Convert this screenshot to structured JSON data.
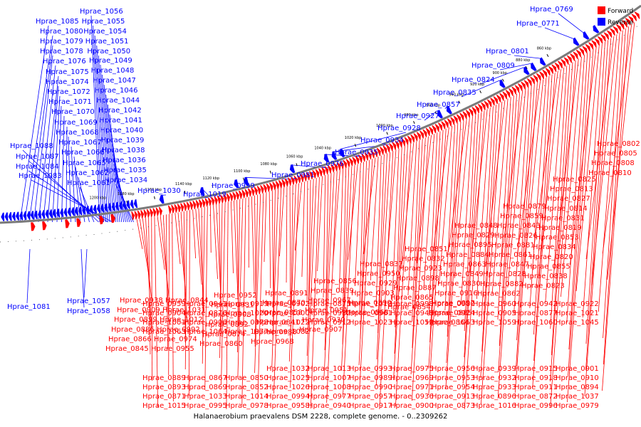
{
  "title": "Halanaerobium praevalens DSM 2228, complete genome. - 0..2309262",
  "legend": {
    "forward": "Forward",
    "reverse": "Reverse",
    "forward_color": "#ff0000",
    "reverse_color": "#0000ff"
  },
  "colors": {
    "forward": "#ff0000",
    "reverse": "#0000ff",
    "backbone": "#808080",
    "tick": "#000000"
  },
  "scale_ticks": [
    "860 kbp",
    "880 kbp",
    "900 kbp",
    "920 kbp",
    "940 kbp",
    "960 kbp",
    "980 kbp",
    "1000 kbp",
    "1020 kbp",
    "1040 kbp",
    "1060 kbp",
    "1080 kbp",
    "1100 kbp",
    "1120 kbp",
    "1140 kbp",
    "1160 kbp",
    "1180 kbp",
    "1200 kbp"
  ],
  "reverse_top_left": [
    "Hprae_1085",
    "Hprae_1080",
    "Hprae_1079",
    "Hprae_1078",
    "Hprae_1076",
    "Hprae_1075",
    "Hprae_1074",
    "Hprae_1072",
    "Hprae_1071",
    "Hprae_1070",
    "Hprae_1069",
    "Hprae_1068",
    "Hprae_1067",
    "Hprae_1066",
    "Hprae_1065",
    "Hprae_1062",
    "Hprae_1061",
    "Hprae_1088",
    "Hprae_1087",
    "Hprae_1084",
    "Hprae_1083"
  ],
  "reverse_top_mid": [
    "Hprae_1056",
    "Hprae_1055",
    "Hprae_1054",
    "Hprae_1051",
    "Hprae_1050",
    "Hprae_1049",
    "Hprae_1048",
    "Hprae_1047",
    "Hprae_1046",
    "Hprae_1044",
    "Hprae_1042",
    "Hprae_1041",
    "Hprae_1040",
    "Hprae_1039",
    "Hprae_1038",
    "Hprae_1036",
    "Hprae_1035",
    "Hprae_1034"
  ],
  "reverse_top_diag": [
    "Hprae_1030",
    "Hprae_1019",
    "Hprae_0999",
    "Hprae_0981",
    "Hprae_0976",
    "Hprae_0935",
    "Hprae_0934",
    "Hprae_0928",
    "Hprae_0927",
    "Hprae_0857",
    "Hprae_0835",
    "Hprae_0824",
    "Hprae_0809",
    "Hprae_0801",
    "Hprae_0771",
    "Hprae_0769"
  ],
  "reverse_bottom": [
    "Hprae_1057",
    "Hprae_1058",
    "Hprae_1081"
  ],
  "forward_labels": [
    "Hprae_0802",
    "Hprae_0805",
    "Hprae_0808",
    "Hprae_0810",
    "Hprae_0825",
    "Hprae_0813",
    "Hprae_0827",
    "Hprae_0814",
    "Hprae_0831",
    "Hprae_0819",
    "Hprae_0853",
    "Hprae_0834",
    "Hprae_0820",
    "Hprae_0855",
    "Hprae_0838",
    "Hprae_0823",
    "Hprae_0879",
    "Hprae_0859",
    "Hprae_0843",
    "Hprae_0826",
    "Hprae_0881",
    "Hprae_0861",
    "Hprae_0847",
    "Hprae_0828",
    "Hprae_0882",
    "Hprae_0862",
    "Hprae_0848",
    "Hprae_0829",
    "Hprae_0895",
    "Hprae_0884",
    "Hprae_0863",
    "Hprae_0849",
    "Hprae_0830",
    "Hprae_0916",
    "Hprae_0897",
    "Hprae_0885",
    "Hprae_0864",
    "Hprae_0851",
    "Hprae_0832",
    "Hprae_0923",
    "Hprae_0898",
    "Hprae_0887",
    "Hprae_0865",
    "Hprae_0854",
    "Hprae_0837",
    "Hprae_0950",
    "Hprae_0929",
    "Hprae_0903",
    "Hprae_0890",
    "Hprae_0868",
    "Hprae_0856",
    "Hprae_0839",
    "Hprae_0967",
    "Hprae_0951",
    "Hprae_0930",
    "Hprae_0907",
    "Hprae_0891",
    "Hprae_0870",
    "Hprae_0858",
    "Hprae_0841",
    "Hprae_0988",
    "Hprae_0968",
    "Hprae_0952",
    "Hprae_0931",
    "Hprae_0908",
    "Hprae_0892",
    "Hprae_0874",
    "Hprae_0860",
    "Hprae_0844",
    "Hprae_1031",
    "Hprae_1012",
    "Hprae_0992",
    "Hprae_0974",
    "Hprae_0955",
    "Hprae_0938",
    "Hprae_0909",
    "Hprae_0899",
    "Hprae_0886",
    "Hprae_0866",
    "Hprae_0845",
    "Hprae_1032",
    "Hprae_1013",
    "Hprae_0993",
    "Hprae_0975",
    "Hprae_0956",
    "Hprae_0939",
    "Hprae_0915",
    "Hprae_0901",
    "Hprae_0889",
    "Hprae_0867",
    "Hprae_0850",
    "Hprae_1025",
    "Hprae_1007",
    "Hprae_0989",
    "Hprae_0969",
    "Hprae_0953",
    "Hprae_0932",
    "Hprae_0918",
    "Hprae_0910",
    "Hprae_0893",
    "Hprae_0869",
    "Hprae_0852",
    "Hprae_1026",
    "Hprae_1008",
    "Hprae_0990",
    "Hprae_0971",
    "Hprae_0954",
    "Hprae_0933",
    "Hprae_0911",
    "Hprae_0894",
    "Hprae_0871",
    "Hprae_1033",
    "Hprae_1014",
    "Hprae_0994",
    "Hprae_0977",
    "Hprae_0957",
    "Hprae_0936",
    "Hprae_0913",
    "Hprae_0896",
    "Hprae_0872",
    "Hprae_1037",
    "Hprae_1015",
    "Hprae_0995",
    "Hprae_0978",
    "Hprae_0958",
    "Hprae_0940",
    "Hprae_0917",
    "Hprae_0900",
    "Hprae_0873",
    "Hprae_1016",
    "Hprae_0996",
    "Hprae_0979",
    "Hprae_0959",
    "Hprae_0941",
    "Hprae_0919",
    "Hprae_0902",
    "Hprae_0875",
    "Hprae_1018",
    "Hprae_0998",
    "Hprae_0980",
    "Hprae_0960",
    "Hprae_0942",
    "Hprae_0922",
    "Hprae_0904",
    "Hprae_0876",
    "Hprae_1020",
    "Hprae_1000",
    "Hprae_0982",
    "Hprae_0961",
    "Hprae_0943",
    "Hprae_0924",
    "Hprae_0905",
    "Hprae_0877",
    "Hprae_1021",
    "Hprae_1001",
    "Hprae_0906",
    "Hprae_0878",
    "Hprae_1022",
    "Hprae_0912",
    "Hprae_1023",
    "Hprae_1052",
    "Hprae_1053",
    "Hprae_1059",
    "Hprae_1060",
    "Hprae_1045",
    "Hprae_1063",
    "Hprae_1064",
    "Hprae_1077",
    "Hprae_1082"
  ]
}
